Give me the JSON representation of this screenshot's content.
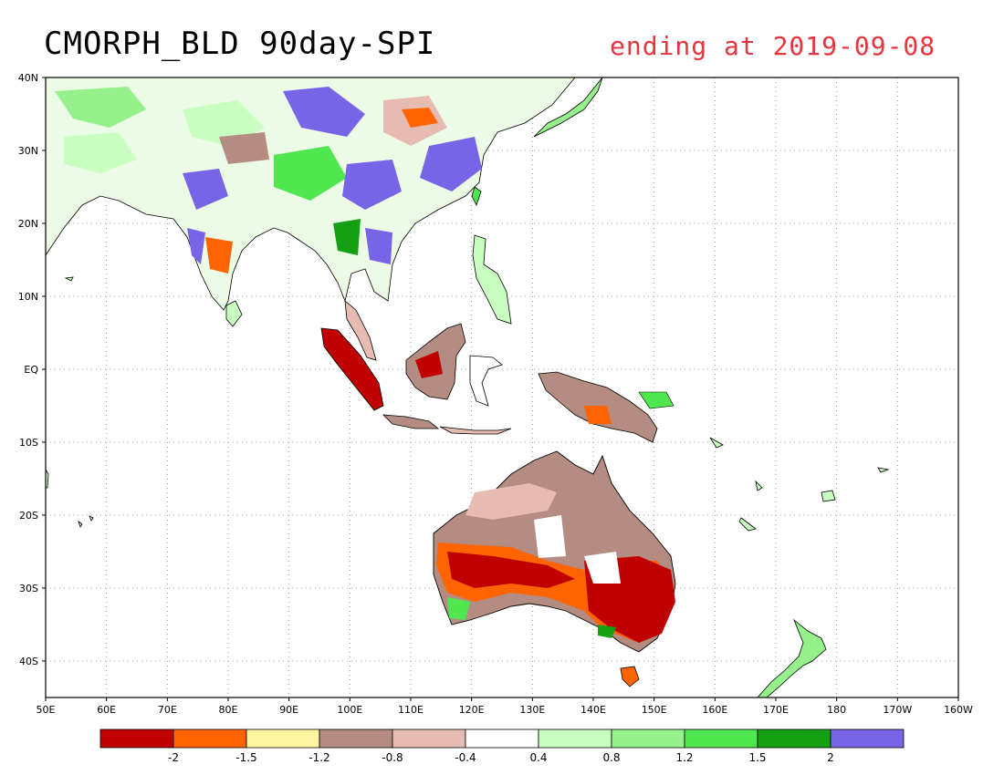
{
  "title": "CMORPH_BLD 90day-SPI",
  "subtitle": "ending at 2019-09-08",
  "subtitle_color": "#e8343c",
  "map": {
    "lon_range": [
      50,
      200
    ],
    "lat_range": [
      -45,
      40
    ],
    "x_ticks": [
      "50E",
      "60E",
      "70E",
      "80E",
      "90E",
      "100E",
      "110E",
      "120E",
      "130E",
      "140E",
      "150E",
      "160E",
      "170E",
      "180",
      "170W",
      "160W"
    ],
    "y_ticks": [
      "40N",
      "30N",
      "20N",
      "10N",
      "EQ",
      "10S",
      "20S",
      "30S",
      "40S"
    ],
    "grid": "dotted"
  },
  "colorbar": {
    "colors": [
      "#c00000",
      "#ff6400",
      "#fff5a0",
      "#b48c82",
      "#e6bcb2",
      "#ffffff",
      "#c8ffc0",
      "#96f08c",
      "#50e650",
      "#14a014",
      "#7864e6"
    ],
    "labels": [
      "-2",
      "-1.5",
      "-1.2",
      "-0.8",
      "-0.4",
      "0.4",
      "0.8",
      "1.2",
      "1.5",
      "2"
    ]
  }
}
